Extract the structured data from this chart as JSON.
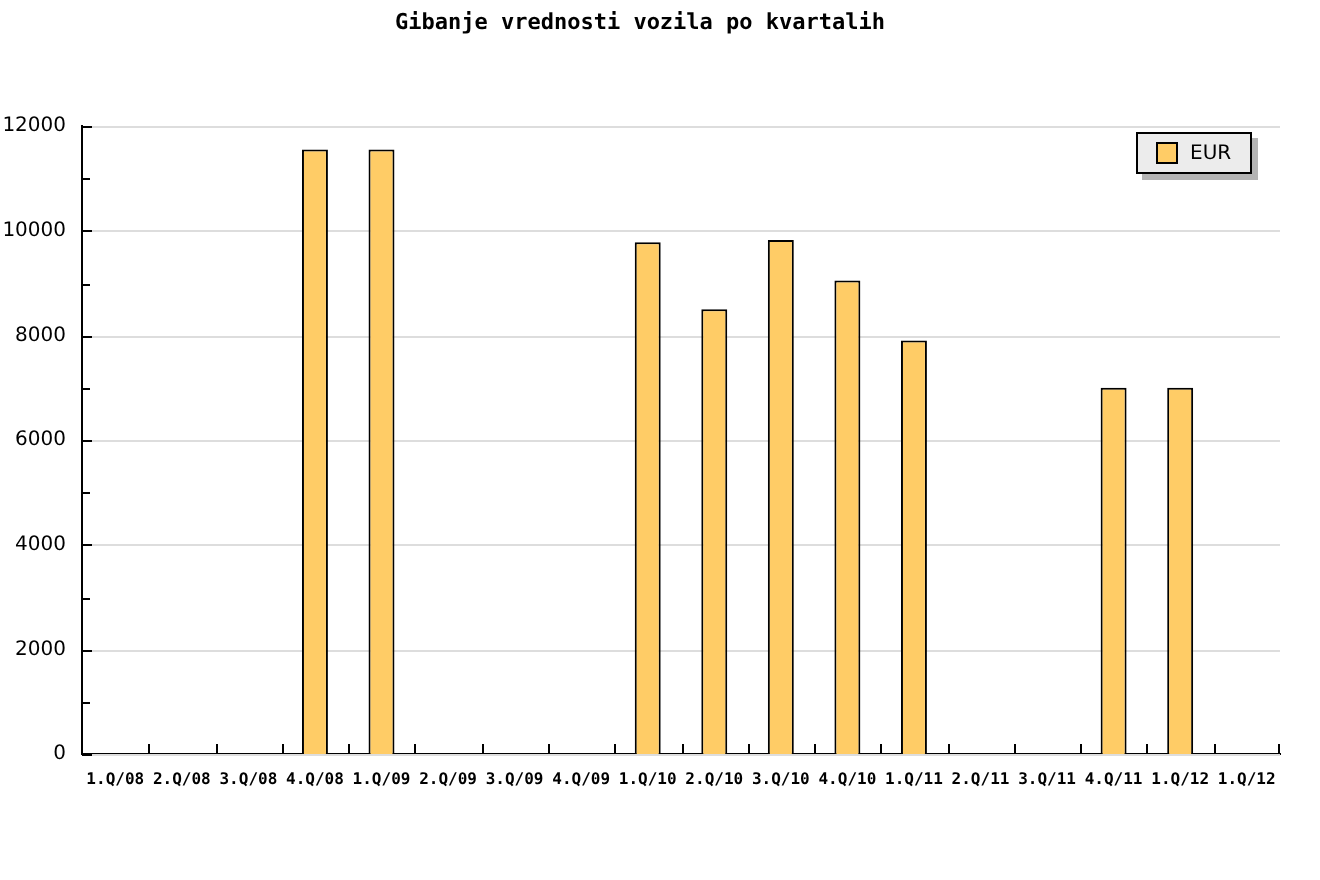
{
  "chart_data": {
    "type": "bar",
    "title": "Gibanje vrednosti vozila po kvartalih",
    "categories": [
      "1.Q/08",
      "2.Q/08",
      "3.Q/08",
      "4.Q/08",
      "1.Q/09",
      "2.Q/09",
      "3.Q/09",
      "4.Q/09",
      "1.Q/10",
      "2.Q/10",
      "3.Q/10",
      "4.Q/10",
      "1.Q/11",
      "2.Q/11",
      "3.Q/11",
      "4.Q/11",
      "1.Q/12",
      "1.Q/12"
    ],
    "series": [
      {
        "name": "EUR",
        "color": "#ffcc66",
        "values": [
          null,
          null,
          null,
          11550,
          11550,
          null,
          null,
          null,
          9780,
          8500,
          9820,
          9050,
          7900,
          null,
          null,
          7000,
          7000,
          null
        ]
      }
    ],
    "ylim": [
      0,
      12000
    ],
    "yticks": [
      0,
      {
        "value": 1000,
        "label": null
      },
      2000,
      {
        "value": 3000,
        "label": null
      },
      4000,
      {
        "value": 5000,
        "label": null
      },
      6000,
      {
        "value": 7000,
        "label": null
      },
      8000,
      {
        "value": 9000,
        "label": null
      },
      10000,
      {
        "value": 11000,
        "label": null
      },
      12000
    ],
    "grid": "y",
    "legend": "top right"
  }
}
